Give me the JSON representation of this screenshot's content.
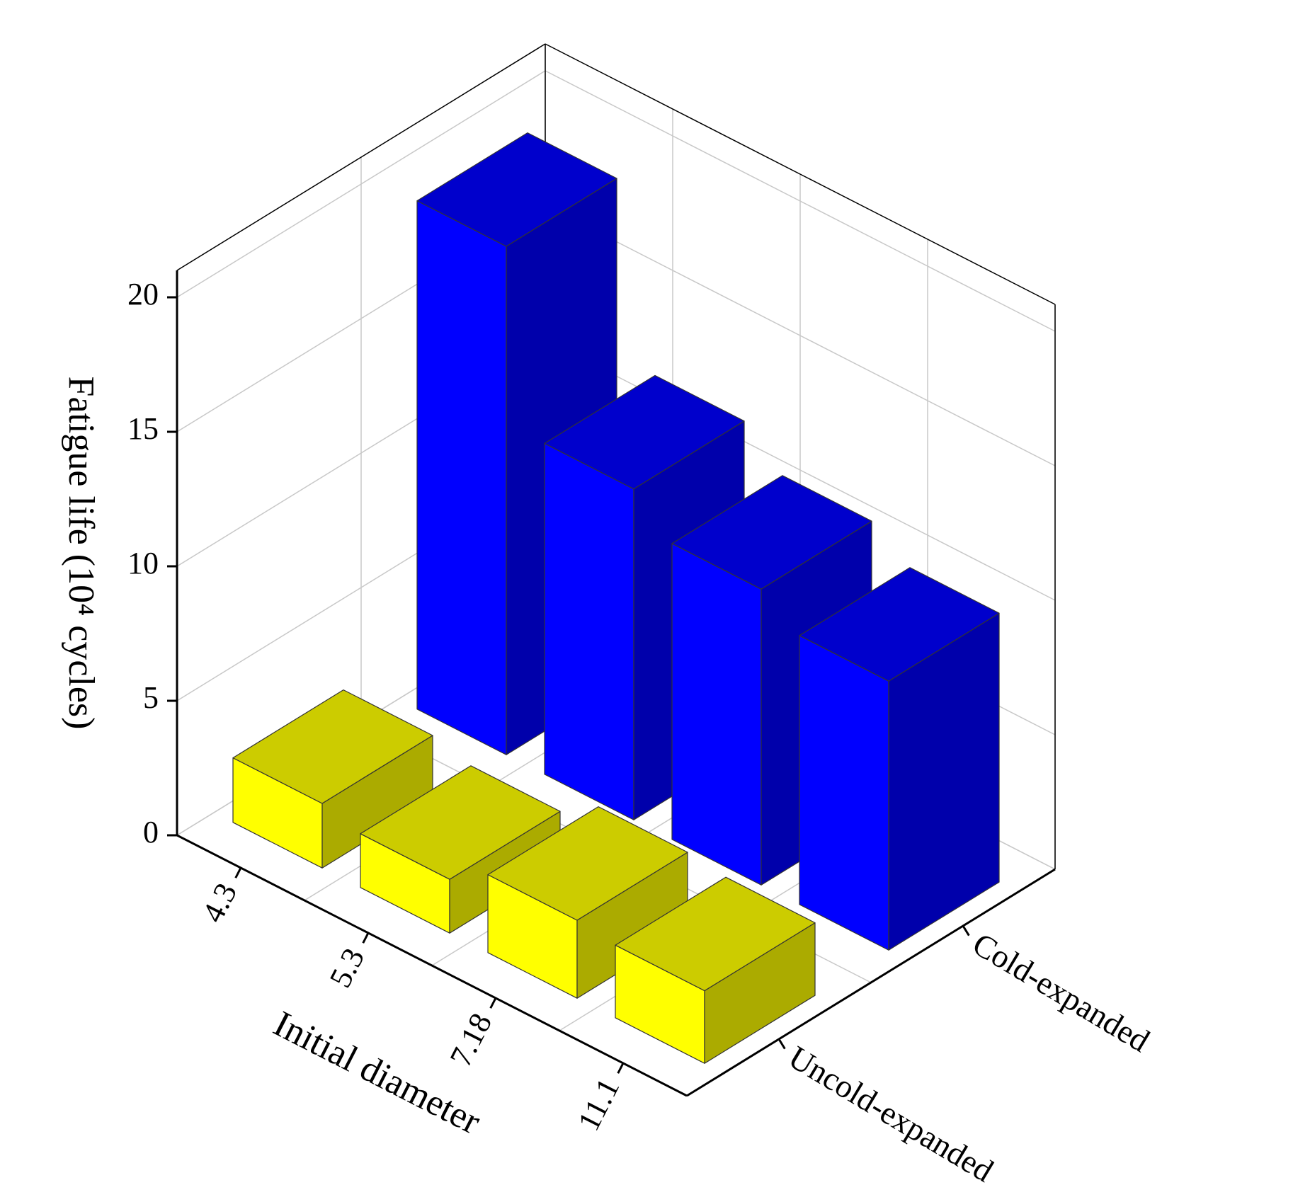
{
  "chart_data": {
    "type": "bar3d",
    "ylabel": "Fatigue life (10⁴ cycles)",
    "xlabel": "Initial diameter",
    "categories": [
      "4.3",
      "5.3",
      "7.18",
      "11.1"
    ],
    "series": [
      {
        "name": "Uncold-expanded",
        "color": "#ffff00",
        "values": [
          2.4,
          2.0,
          2.9,
          2.7
        ]
      },
      {
        "name": "Cold-expanded",
        "color": "#0000ff",
        "values": [
          18.9,
          12.3,
          11.0,
          10.0
        ]
      }
    ],
    "ylim": [
      0,
      21
    ],
    "yticks": [
      0,
      5,
      10,
      15,
      20
    ],
    "grid": true
  }
}
